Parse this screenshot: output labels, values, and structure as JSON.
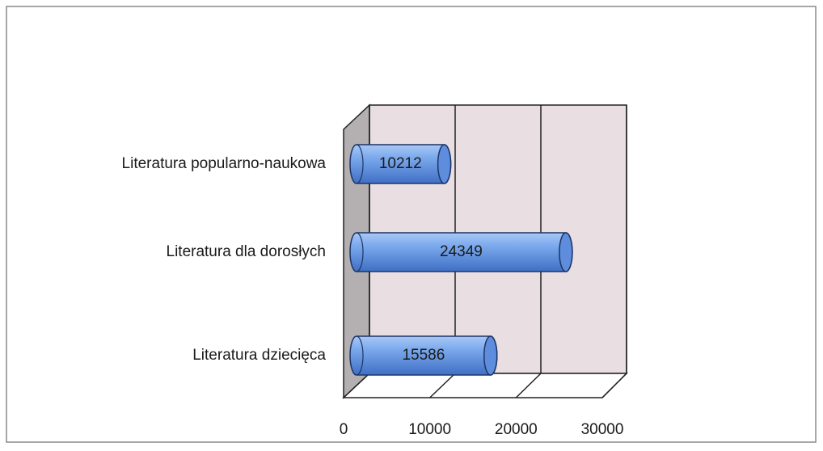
{
  "chart_data": {
    "type": "bar3d-horizontal",
    "categories": [
      "Literatura dziecięca",
      "Literatura dla dorosłych",
      "Literatura popularno-naukowa"
    ],
    "values": [
      15586,
      24349,
      10212
    ],
    "color": "#6f9fe6",
    "xlim": [
      0,
      30000
    ],
    "xticks": [
      0,
      10000,
      20000,
      30000
    ],
    "grid": true
  }
}
